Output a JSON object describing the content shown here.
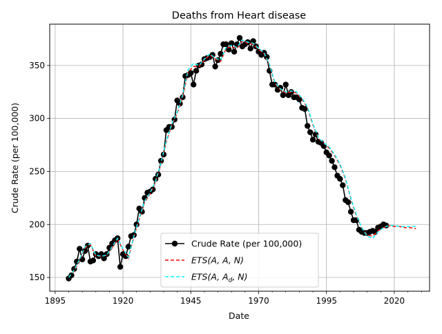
{
  "chart_data": {
    "type": "line",
    "title": "Deaths from Heart disease",
    "xlabel": "Date",
    "ylabel": "Crude Rate (per 100,000)",
    "xlim": [
      1893,
      2033
    ],
    "ylim": [
      137,
      389
    ],
    "x_ticks": [
      1895,
      1920,
      1945,
      1970,
      1995,
      2020
    ],
    "y_ticks": [
      150,
      200,
      250,
      300,
      350
    ],
    "grid": true,
    "legend_position": "lower-center",
    "colors": {
      "observed": "#000000",
      "ets_aan": "#ff0000",
      "ets_aadn": "#00ffff",
      "grid": "#b0b0b0"
    },
    "legend": [
      {
        "key": "observed",
        "label": "Crude Rate (per 100,000)"
      },
      {
        "key": "ets_aan",
        "label": "ETS(A, A, N)"
      },
      {
        "key": "ets_aadn",
        "label": "ETS(A, A_d, N)"
      }
    ],
    "series": [
      {
        "key": "observed",
        "name": "Crude Rate (per 100,000)",
        "style": "solid-marker",
        "x": [
          1900,
          1901,
          1902,
          1903,
          1904,
          1905,
          1906,
          1907,
          1908,
          1909,
          1910,
          1911,
          1912,
          1913,
          1914,
          1915,
          1916,
          1917,
          1918,
          1919,
          1920,
          1921,
          1922,
          1923,
          1924,
          1925,
          1926,
          1927,
          1928,
          1929,
          1930,
          1931,
          1932,
          1933,
          1934,
          1935,
          1936,
          1937,
          1938,
          1939,
          1940,
          1941,
          1942,
          1943,
          1944,
          1945,
          1946,
          1947,
          1948,
          1949,
          1950,
          1951,
          1952,
          1953,
          1954,
          1955,
          1956,
          1957,
          1958,
          1959,
          1960,
          1961,
          1962,
          1963,
          1964,
          1965,
          1966,
          1967,
          1968,
          1969,
          1970,
          1971,
          1972,
          1973,
          1974,
          1975,
          1976,
          1977,
          1978,
          1979,
          1980,
          1981,
          1982,
          1983,
          1984,
          1985,
          1986,
          1987,
          1988,
          1989,
          1990,
          1991,
          1992,
          1993,
          1994,
          1995,
          1996,
          1997,
          1998,
          1999,
          2000,
          2001,
          2002,
          2003,
          2004,
          2005,
          2006,
          2007,
          2008,
          2009,
          2010,
          2011,
          2012,
          2013,
          2014,
          2015,
          2016,
          2017
        ],
        "y": [
          149,
          152,
          158,
          165,
          177,
          167,
          175,
          180,
          165,
          166,
          172,
          170,
          172,
          168,
          172,
          178,
          182,
          185,
          187,
          160,
          172,
          170,
          179,
          189,
          190,
          200,
          215,
          212,
          225,
          230,
          231,
          233,
          243,
          247,
          260,
          266,
          289,
          292,
          292,
          299,
          317,
          314,
          320,
          340,
          341,
          343,
          332,
          345,
          350,
          351,
          356,
          357,
          358,
          360,
          349,
          355,
          361,
          370,
          370,
          365,
          371,
          363,
          370,
          376,
          368,
          370,
          372,
          366,
          373,
          368,
          363,
          360,
          362,
          358,
          345,
          332,
          332,
          327,
          329,
          322,
          332,
          322,
          325,
          320,
          320,
          318,
          310,
          309,
          293,
          287,
          280,
          285,
          278,
          277,
          274,
          268,
          265,
          260,
          254,
          246,
          243,
          237,
          223,
          221,
          212,
          204,
          204,
          195,
          193,
          192,
          192,
          193,
          194,
          193,
          197,
          198,
          200,
          199
        ]
      },
      {
        "key": "ets_aan",
        "name": "ETS(A, A, N)",
        "style": "dashed",
        "x": [
          1900,
          1902,
          1904,
          1906,
          1908,
          1910,
          1912,
          1914,
          1916,
          1918,
          1920,
          1922,
          1924,
          1926,
          1928,
          1930,
          1932,
          1934,
          1936,
          1938,
          1940,
          1942,
          1944,
          1946,
          1948,
          1950,
          1952,
          1954,
          1956,
          1958,
          1960,
          1962,
          1964,
          1966,
          1968,
          1970,
          1972,
          1974,
          1976,
          1978,
          1980,
          1982,
          1984,
          1986,
          1988,
          1990,
          1992,
          1994,
          1996,
          1998,
          2000,
          2002,
          2004,
          2006,
          2008,
          2010,
          2012,
          2014,
          2016,
          2018,
          2020,
          2022,
          2024,
          2026,
          2028
        ],
        "y": [
          150,
          156,
          166,
          178,
          181,
          170,
          170,
          171,
          178,
          186,
          176,
          168,
          188,
          205,
          221,
          229,
          240,
          257,
          278,
          294,
          305,
          320,
          344,
          349,
          349,
          355,
          360,
          356,
          354,
          366,
          368,
          366,
          373,
          371,
          370,
          365,
          361,
          350,
          333,
          327,
          324,
          325,
          324,
          318,
          310,
          294,
          281,
          277,
          272,
          265,
          256,
          243,
          224,
          208,
          197,
          190,
          189,
          194,
          197,
          199,
          198,
          198,
          197,
          197,
          196
        ]
      },
      {
        "key": "ets_aadn",
        "name": "ETS(A, A_d, N)",
        "style": "dashed",
        "x": [
          1900,
          1902,
          1904,
          1906,
          1908,
          1910,
          1912,
          1914,
          1916,
          1918,
          1920,
          1922,
          1924,
          1926,
          1928,
          1930,
          1932,
          1934,
          1936,
          1938,
          1940,
          1942,
          1944,
          1946,
          1948,
          1950,
          1952,
          1954,
          1956,
          1958,
          1960,
          1962,
          1964,
          1966,
          1968,
          1970,
          1972,
          1974,
          1976,
          1978,
          1980,
          1982,
          1984,
          1986,
          1988,
          1990,
          1992,
          1994,
          1996,
          1998,
          2000,
          2002,
          2004,
          2006,
          2008,
          2010,
          2012,
          2014,
          2016,
          2018,
          2020,
          2022,
          2024,
          2026,
          2028
        ],
        "y": [
          150,
          157,
          167,
          179,
          182,
          171,
          170,
          171,
          179,
          187,
          177,
          169,
          189,
          206,
          222,
          230,
          241,
          258,
          279,
          295,
          306,
          322,
          346,
          352,
          350,
          356,
          361,
          357,
          355,
          367,
          369,
          367,
          374,
          372,
          371,
          366,
          362,
          351,
          334,
          328,
          325,
          326,
          325,
          319,
          311,
          295,
          282,
          277,
          273,
          266,
          257,
          244,
          225,
          209,
          197,
          189,
          187,
          193,
          197,
          199,
          199,
          198,
          198,
          198,
          198
        ]
      }
    ]
  }
}
